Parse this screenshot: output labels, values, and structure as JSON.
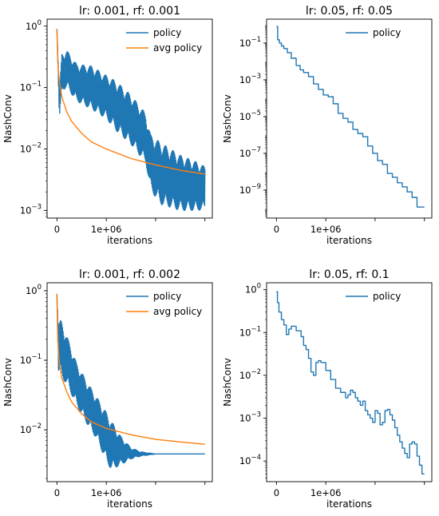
{
  "colors": {
    "policy": "#1f77b4",
    "avg_policy": "#ff7f0e"
  },
  "chart_data": [
    {
      "type": "line",
      "title": "lr: 0.001, rf: 0.001",
      "xlabel": "iterations",
      "ylabel": "NashConv",
      "yscale": "log",
      "ylim": [
        0.00075,
        1.3
      ],
      "xlim": [
        -200000,
        3150000
      ],
      "xticks": [
        0,
        1000000,
        2000000,
        3000000
      ],
      "xtick_labels": [
        "0",
        "1e+06",
        "",
        ""
      ],
      "yticks": [
        1,
        0.1,
        0.01,
        0.001
      ],
      "ytick_labels": [
        "10^0",
        "10^-1",
        "10^-2",
        "10^-3"
      ],
      "legend": "top-right",
      "series": [
        {
          "name": "policy",
          "color": "#1f77b4",
          "style": "oscillating",
          "x": [
            0,
            50000,
            100000,
            200000,
            400000,
            700000,
            1000000,
            1200000,
            1500000,
            1800000,
            1900000,
            2100000,
            2500000,
            2800000,
            3000000
          ],
          "y": [
            0.9,
            0.05,
            0.18,
            0.2,
            0.12,
            0.1,
            0.07,
            0.05,
            0.03,
            0.015,
            0.006,
            0.004,
            0.0028,
            0.0025,
            0.0023
          ],
          "amp": [
            0,
            0.25,
            0.3,
            0.3,
            0.3,
            0.35,
            0.35,
            0.4,
            0.4,
            0.4,
            0.45,
            0.5,
            0.45,
            0.4,
            0.35
          ]
        },
        {
          "name": "avg policy",
          "color": "#ff7f0e",
          "style": "smooth",
          "x": [
            0,
            10000,
            30000,
            60000,
            100000,
            200000,
            300000,
            500000,
            700000,
            1000000,
            1500000,
            2000000,
            2500000,
            3000000
          ],
          "y": [
            0.9,
            0.4,
            0.17,
            0.11,
            0.07,
            0.04,
            0.028,
            0.018,
            0.013,
            0.01,
            0.007,
            0.0055,
            0.0045,
            0.0039
          ],
          "amp": []
        }
      ]
    },
    {
      "type": "line",
      "title": "lr: 0.05, rf: 0.05",
      "xlabel": "iterations",
      "ylabel": "NashConv",
      "yscale": "log",
      "ylim": [
        3e-11,
        2
      ],
      "xlim": [
        -200000,
        3150000
      ],
      "xticks": [
        0,
        1000000,
        2000000,
        3000000
      ],
      "xtick_labels": [
        "0",
        "1e+06",
        "",
        ""
      ],
      "yticks": [
        0.1,
        0.001,
        1e-05,
        1e-07,
        1e-09
      ],
      "ytick_labels": [
        "10^-1",
        "10^-3",
        "10^-5",
        "10^-7",
        "10^-9"
      ],
      "legend": "top-right",
      "series": [
        {
          "name": "policy",
          "color": "#1f77b4",
          "style": "step",
          "x": [
            0,
            25000,
            60000,
            100000,
            150000,
            220000,
            300000,
            400000,
            480000,
            550000,
            650000,
            750000,
            850000,
            950000,
            1050000,
            1150000,
            1250000,
            1350000,
            1450000,
            1550000,
            1650000,
            1750000,
            1850000,
            1950000,
            2050000,
            2150000,
            2250000,
            2350000,
            2450000,
            2550000,
            2650000,
            2750000,
            2850000,
            3000000
          ],
          "y": [
            0.8,
            0.15,
            0.1,
            0.07,
            0.05,
            0.03,
            0.015,
            0.006,
            0.0035,
            0.0025,
            0.0015,
            0.0006,
            0.0003,
            0.00015,
            0.00012,
            5e-05,
            1.5e-05,
            8e-06,
            5e-06,
            2e-06,
            1.2e-06,
            8e-07,
            2.5e-07,
            1e-07,
            4e-08,
            2.5e-08,
            8e-09,
            5e-09,
            2.5e-09,
            1.5e-09,
            8e-10,
            4e-10,
            1.2e-10,
            1.2e-10
          ]
        }
      ]
    },
    {
      "type": "line",
      "title": "lr: 0.001, rf: 0.002",
      "xlabel": "iterations",
      "ylabel": "NashConv",
      "yscale": "log",
      "ylim": [
        0.0018,
        1.3
      ],
      "xlim": [
        -200000,
        3150000
      ],
      "xticks": [
        0,
        1000000,
        2000000,
        3000000
      ],
      "xtick_labels": [
        "0",
        "1e+06",
        "",
        ""
      ],
      "yticks": [
        1,
        0.1,
        0.01
      ],
      "ytick_labels": [
        "10^0",
        "10^-1",
        "10^-2"
      ],
      "legend": "top-right",
      "series": [
        {
          "name": "policy",
          "color": "#1f77b4",
          "style": "oscillating",
          "x": [
            0,
            30000,
            80000,
            200000,
            400000,
            600000,
            800000,
            1000000,
            1100000,
            1300000,
            1500000,
            1700000,
            2000000,
            3000000
          ],
          "y": [
            0.9,
            0.15,
            0.15,
            0.1,
            0.045,
            0.025,
            0.015,
            0.008,
            0.006,
            0.005,
            0.0046,
            0.0045,
            0.0045,
            0.0045
          ],
          "amp": [
            0,
            0.35,
            0.4,
            0.35,
            0.3,
            0.3,
            0.3,
            0.35,
            0.35,
            0.2,
            0.08,
            0.03,
            0,
            0
          ]
        },
        {
          "name": "avg policy",
          "color": "#ff7f0e",
          "style": "smooth",
          "x": [
            0,
            10000,
            30000,
            60000,
            100000,
            200000,
            300000,
            500000,
            700000,
            1000000,
            1500000,
            2000000,
            2500000,
            3000000
          ],
          "y": [
            0.9,
            0.3,
            0.13,
            0.08,
            0.055,
            0.035,
            0.025,
            0.017,
            0.013,
            0.0105,
            0.0085,
            0.0073,
            0.0067,
            0.0062
          ],
          "amp": []
        }
      ]
    },
    {
      "type": "line",
      "title": "lr: 0.05, rf: 0.1",
      "xlabel": "iterations",
      "ylabel": "NashConv",
      "yscale": "log",
      "ylim": [
        3.3e-05,
        1.45
      ],
      "xlim": [
        -200000,
        3150000
      ],
      "xticks": [
        0,
        1000000,
        2000000,
        3000000
      ],
      "xtick_labels": [
        "0",
        "1e+06",
        "",
        ""
      ],
      "yticks": [
        1,
        0.1,
        0.01,
        0.001,
        0.0001
      ],
      "ytick_labels": [
        "10^0",
        "10^-1",
        "10^-2",
        "10^-3",
        "10^-4"
      ],
      "legend": "top-right",
      "series": [
        {
          "name": "policy",
          "color": "#1f77b4",
          "style": "step",
          "x": [
            0,
            20000,
            50000,
            100000,
            150000,
            200000,
            250000,
            300000,
            400000,
            500000,
            550000,
            600000,
            650000,
            700000,
            750000,
            800000,
            850000,
            900000,
            1000000,
            1100000,
            1200000,
            1300000,
            1400000,
            1450000,
            1500000,
            1550000,
            1600000,
            1650000,
            1700000,
            1750000,
            1800000,
            1850000,
            1900000,
            1950000,
            2000000,
            2050000,
            2100000,
            2150000,
            2200000,
            2250000,
            2300000,
            2350000,
            2400000,
            2450000,
            2500000,
            2550000,
            2600000,
            2650000,
            2700000,
            2750000,
            2800000,
            2850000,
            2900000,
            2950000,
            3000000
          ],
          "y": [
            0.9,
            0.5,
            0.3,
            0.2,
            0.15,
            0.09,
            0.12,
            0.14,
            0.11,
            0.08,
            0.05,
            0.04,
            0.025,
            0.012,
            0.01,
            0.02,
            0.022,
            0.02,
            0.013,
            0.008,
            0.005,
            0.004,
            0.003,
            0.0035,
            0.0045,
            0.004,
            0.003,
            0.0025,
            0.002,
            0.0025,
            0.0015,
            0.0012,
            0.001,
            0.0008,
            0.0015,
            0.0013,
            0.0007,
            0.0008,
            0.0015,
            0.0016,
            0.0012,
            0.0009,
            0.0006,
            0.0004,
            0.00028,
            0.0002,
            0.00015,
            0.00012,
            0.00025,
            0.00028,
            0.00025,
            0.00013,
            8e-05,
            5e-05,
            5e-05
          ]
        }
      ]
    }
  ]
}
